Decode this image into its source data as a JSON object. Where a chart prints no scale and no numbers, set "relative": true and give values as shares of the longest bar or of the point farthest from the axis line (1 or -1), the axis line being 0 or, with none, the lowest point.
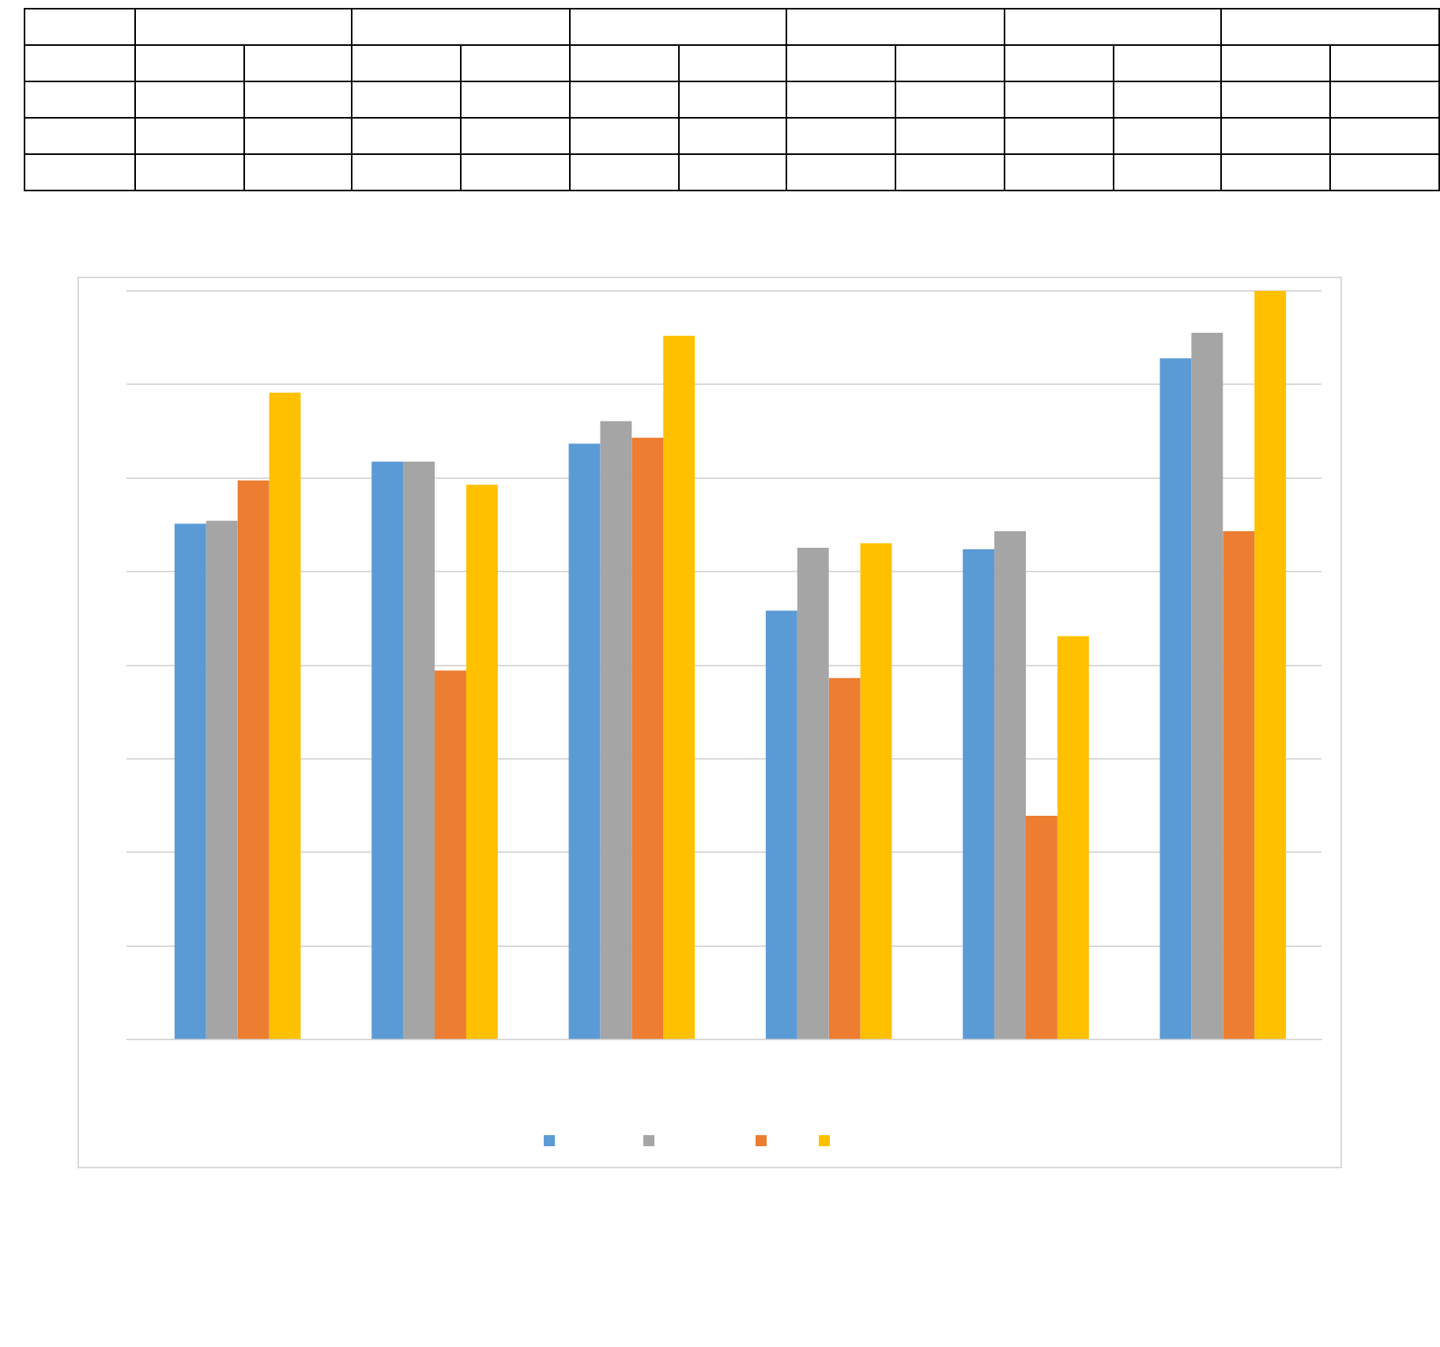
{
  "chart_data": {
    "type": "bar",
    "relative": true,
    "grid": "y",
    "categories": [
      null,
      null,
      null,
      null,
      null,
      null
    ],
    "series": [
      {
        "color": "#5b9bd5",
        "values": [
          0.689,
          0.772,
          0.796,
          0.573,
          0.655,
          0.91
        ]
      },
      {
        "color": "#a5a5a5",
        "values": [
          0.693,
          0.772,
          0.826,
          0.657,
          0.679,
          0.944
        ]
      },
      {
        "color": "#ed7d31",
        "values": [
          0.747,
          0.493,
          0.804,
          0.483,
          0.299,
          0.679
        ]
      },
      {
        "color": "#ffc000",
        "values": [
          0.864,
          0.741,
          0.94,
          0.663,
          0.539,
          1
        ]
      }
    ]
  }
}
